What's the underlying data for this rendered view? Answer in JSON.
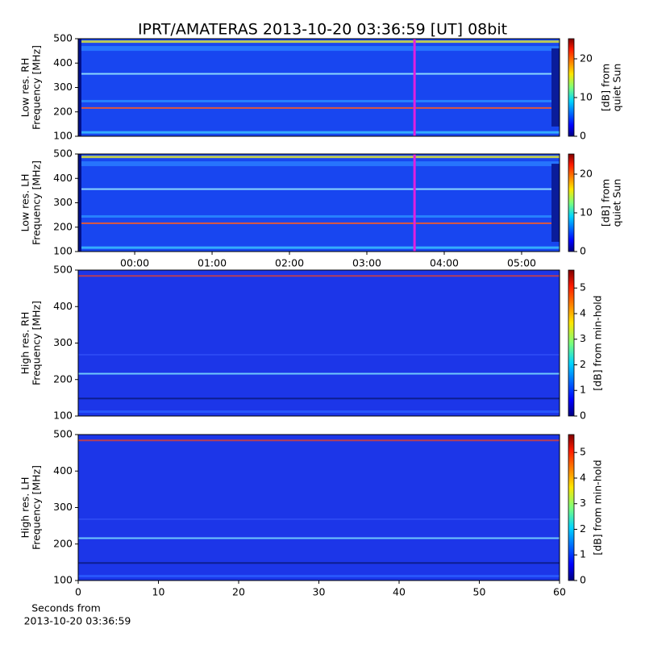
{
  "chart_data": [
    {
      "type": "spectrogram",
      "title": "IPRT/AMATERAS 2013-10-20 03:36:59 [UT]   08bit",
      "ylabel": [
        "Low res. RH",
        "Frequency [MHz]"
      ],
      "ylim": [
        100,
        500
      ],
      "yticks": [
        100,
        200,
        300,
        400,
        500
      ],
      "xlim": [
        -0.73,
        5.49
      ],
      "marker_x": 3.616,
      "marker_color": "#e020e0",
      "colorbar": {
        "label": [
          "[dB] from",
          "quiet Sun"
        ],
        "lim": [
          0,
          25.2
        ],
        "ticks": [
          0,
          10,
          20
        ]
      }
    },
    {
      "type": "spectrogram",
      "ylabel": [
        "Low res. LH",
        "Frequency [MHz]"
      ],
      "ylim": [
        100,
        500
      ],
      "yticks": [
        100,
        200,
        300,
        400,
        500
      ],
      "xlim": [
        -0.73,
        5.49
      ],
      "xticks": [
        {
          "value": 0,
          "label": "00:00"
        },
        {
          "value": 1,
          "label": "01:00"
        },
        {
          "value": 2,
          "label": "02:00"
        },
        {
          "value": 3,
          "label": "03:00"
        },
        {
          "value": 4,
          "label": "04:00"
        },
        {
          "value": 5,
          "label": "05:00"
        }
      ],
      "marker_x": 3.616,
      "marker_color": "#e020e0",
      "colorbar": {
        "label": [
          "[dB] from",
          "quiet Sun"
        ],
        "lim": [
          0,
          25.2
        ],
        "ticks": [
          0,
          10,
          20
        ]
      }
    },
    {
      "type": "spectrogram",
      "ylabel": [
        "High res. RH",
        "Frequency [MHz]"
      ],
      "ylim": [
        100,
        500
      ],
      "yticks": [
        100,
        200,
        300,
        400,
        500
      ],
      "xlim": [
        0,
        60
      ],
      "colorbar": {
        "label": [
          "[dB] from min-hold"
        ],
        "lim": [
          0,
          5.7
        ],
        "ticks": [
          0,
          1,
          2,
          3,
          4,
          5
        ]
      }
    },
    {
      "type": "spectrogram",
      "ylabel": [
        "High res. LH",
        "Frequency [MHz]"
      ],
      "ylim": [
        100,
        500
      ],
      "yticks": [
        100,
        200,
        300,
        400,
        500
      ],
      "xlim": [
        0,
        60
      ],
      "xticks": [
        0,
        10,
        20,
        30,
        40,
        50,
        60
      ],
      "xlabel": [
        "Seconds from",
        "2013-10-20 03:36:59"
      ],
      "colorbar": {
        "label": [
          "[dB] from min-hold"
        ],
        "lim": [
          0,
          5.7
        ],
        "ticks": [
          0,
          1,
          2,
          3,
          4,
          5
        ]
      }
    }
  ]
}
